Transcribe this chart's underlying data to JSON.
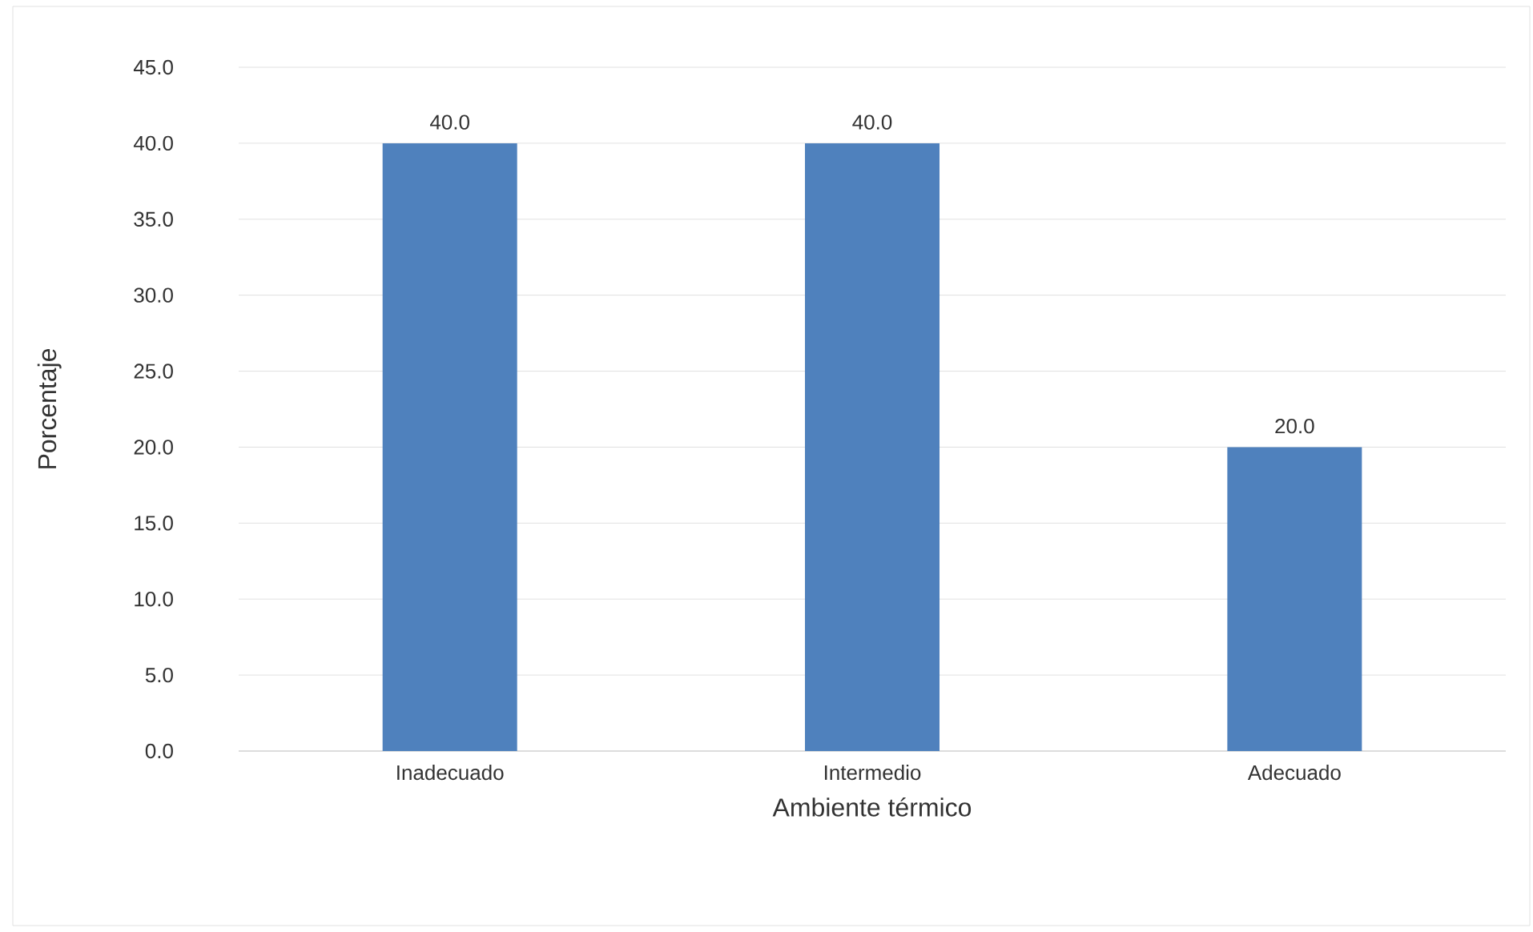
{
  "chart_data": {
    "type": "bar",
    "xlabel": "Ambiente térmico",
    "ylabel": "Porcentaje",
    "categories": [
      "Inadecuado",
      "Intermedio",
      "Adecuado"
    ],
    "values": [
      40.0,
      40.0,
      20.0
    ],
    "value_labels": [
      "40.0",
      "40.0",
      "20.0"
    ],
    "color": "#4f81bd",
    "ylim": [
      0,
      45
    ],
    "yticks": [
      {
        "value": 0,
        "label": "0.0"
      },
      {
        "value": 5,
        "label": "5.0"
      },
      {
        "value": 10,
        "label": "10.0"
      },
      {
        "value": 15,
        "label": "15.0"
      },
      {
        "value": 20,
        "label": "20.0"
      },
      {
        "value": 25,
        "label": "25.0"
      },
      {
        "value": 30,
        "label": "30.0"
      },
      {
        "value": 35,
        "label": "35.0"
      },
      {
        "value": 40,
        "label": "40.0"
      },
      {
        "value": 45,
        "label": "45.0"
      }
    ],
    "grid": "y"
  }
}
